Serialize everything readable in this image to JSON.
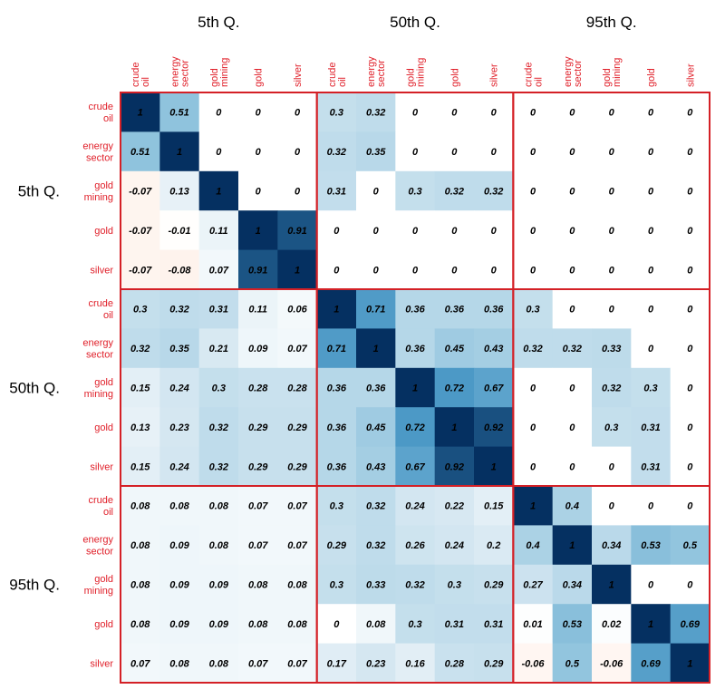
{
  "chart_data": {
    "type": "heatmap",
    "title": "",
    "variables": [
      "crude oil",
      "energy sector",
      "gold mining",
      "gold",
      "silver"
    ],
    "variable_label_lines": [
      [
        "crude",
        "oil"
      ],
      [
        "energy",
        "sector"
      ],
      [
        "gold",
        "mining"
      ],
      [
        "gold"
      ],
      [
        "silver"
      ]
    ],
    "quantiles": [
      "5th Q.",
      "50th Q.",
      "95th Q."
    ],
    "color_scale": {
      "min": -1,
      "max": 1,
      "negative": "#b2182b",
      "zero": "#ffffff",
      "positive": "#053061"
    },
    "matrix": [
      [
        1,
        0.51,
        0,
        0,
        0,
        0.3,
        0.32,
        0,
        0,
        0,
        0,
        0,
        0,
        0,
        0
      ],
      [
        0.51,
        1,
        0,
        0,
        0,
        0.32,
        0.35,
        0,
        0,
        0,
        0,
        0,
        0,
        0,
        0
      ],
      [
        -0.07,
        0.13,
        1,
        0,
        0,
        0.31,
        0,
        0.3,
        0.32,
        0.32,
        0,
        0,
        0,
        0,
        0
      ],
      [
        -0.07,
        -0.01,
        0.11,
        1,
        0.91,
        0,
        0,
        0,
        0,
        0,
        0,
        0,
        0,
        0,
        0
      ],
      [
        -0.07,
        -0.08,
        0.07,
        0.91,
        1,
        0,
        0,
        0,
        0,
        0,
        0,
        0,
        0,
        0,
        0
      ],
      [
        0.3,
        0.32,
        0.31,
        0.11,
        0.06,
        1,
        0.71,
        0.36,
        0.36,
        0.36,
        0.3,
        0,
        0,
        0,
        0
      ],
      [
        0.32,
        0.35,
        0.21,
        0.09,
        0.07,
        0.71,
        1,
        0.36,
        0.45,
        0.43,
        0.32,
        0.32,
        0.33,
        0,
        0
      ],
      [
        0.15,
        0.24,
        0.3,
        0.28,
        0.28,
        0.36,
        0.36,
        1,
        0.72,
        0.67,
        0,
        0,
        0.32,
        0.3,
        0
      ],
      [
        0.13,
        0.23,
        0.32,
        0.29,
        0.29,
        0.36,
        0.45,
        0.72,
        1,
        0.92,
        0,
        0,
        0.3,
        0.31,
        0
      ],
      [
        0.15,
        0.24,
        0.32,
        0.29,
        0.29,
        0.36,
        0.43,
        0.67,
        0.92,
        1,
        0,
        0,
        0,
        0.31,
        0
      ],
      [
        0.08,
        0.08,
        0.08,
        0.07,
        0.07,
        0.3,
        0.32,
        0.24,
        0.22,
        0.15,
        1,
        0.4,
        0,
        0,
        0
      ],
      [
        0.08,
        0.09,
        0.08,
        0.07,
        0.07,
        0.29,
        0.32,
        0.26,
        0.24,
        0.2,
        0.4,
        1,
        0.34,
        0.53,
        0.5
      ],
      [
        0.08,
        0.09,
        0.09,
        0.08,
        0.08,
        0.3,
        0.33,
        0.32,
        0.3,
        0.29,
        0.27,
        0.34,
        1,
        0,
        0
      ],
      [
        0.08,
        0.09,
        0.09,
        0.08,
        0.08,
        0,
        0.08,
        0.3,
        0.31,
        0.31,
        0.01,
        0.53,
        0.02,
        1,
        0.69
      ],
      [
        0.07,
        0.08,
        0.08,
        0.07,
        0.07,
        0.17,
        0.23,
        0.16,
        0.28,
        0.29,
        -0.06,
        0.5,
        -0.06,
        0.69,
        1
      ]
    ]
  },
  "colors": {
    "label": "#e0202a",
    "block_border": "#d42026",
    "quantile_label": "#000000",
    "cell_text": "#000000"
  }
}
